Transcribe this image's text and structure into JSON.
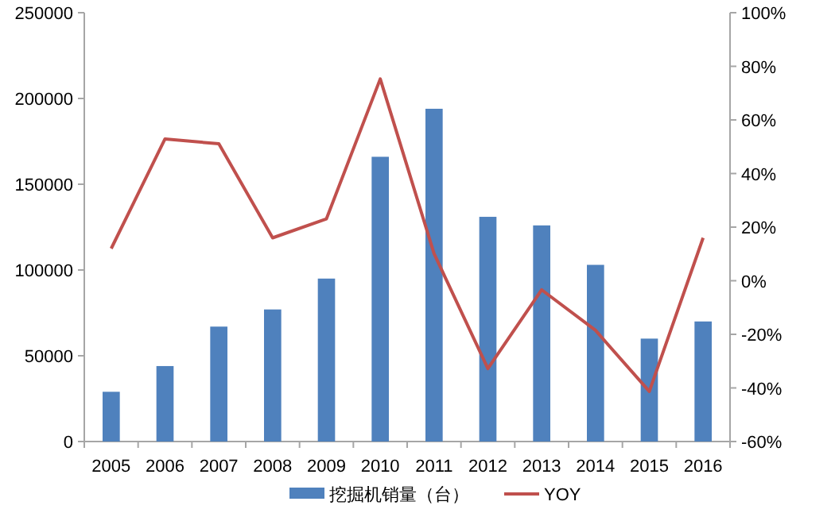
{
  "chart_data": {
    "type": "bar",
    "categories": [
      "2005",
      "2006",
      "2007",
      "2008",
      "2009",
      "2010",
      "2011",
      "2012",
      "2013",
      "2014",
      "2015",
      "2016"
    ],
    "series": [
      {
        "name": "挖掘机销量（台）",
        "color": "#4f81bd",
        "values": [
          29000,
          44000,
          67000,
          77000,
          95000,
          166000,
          194000,
          131000,
          126000,
          103000,
          60000,
          70000
        ]
      },
      {
        "name": "YOY",
        "type": "line",
        "axis": "y2",
        "color": "#c0504d",
        "values": [
          12.0,
          52.9,
          51.1,
          16.0,
          23.1,
          75.3,
          10.1,
          -32.8,
          -3.4,
          -18.5,
          -41.3,
          16.0
        ]
      }
    ],
    "ylim": [
      0,
      250000
    ],
    "yticks": [
      0,
      50000,
      100000,
      150000,
      200000,
      250000
    ],
    "y2lim": [
      -60,
      100
    ],
    "y2ticks": [
      {
        "value": -60,
        "label": "-60%"
      },
      {
        "value": -40,
        "label": "-40%"
      },
      {
        "value": -20,
        "label": "-20%"
      },
      {
        "value": 0,
        "label": "0%"
      },
      {
        "value": 20,
        "label": "20%"
      },
      {
        "value": 40,
        "label": "40%"
      },
      {
        "value": 60,
        "label": "60%"
      },
      {
        "value": 80,
        "label": "80%"
      },
      {
        "value": 100,
        "label": "100%"
      }
    ],
    "legend": "bottom",
    "grid": false,
    "marker": "none"
  }
}
